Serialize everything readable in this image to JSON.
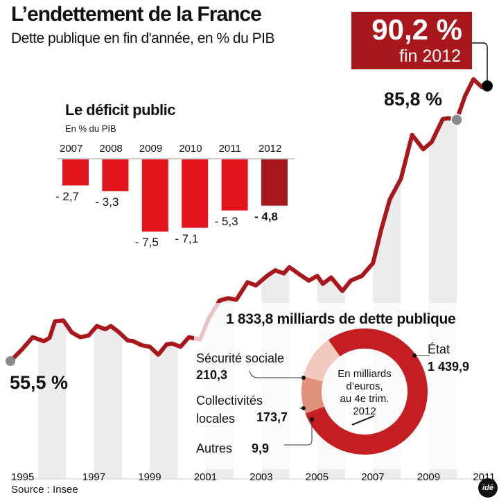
{
  "header": {
    "title": "L’endettement de la France",
    "subtitle": "Dette publique en fin d'année, en % du PIB"
  },
  "highlight": {
    "value": "90,2 %",
    "label": "fin 2012"
  },
  "annotations": {
    "start": "55,5 %",
    "mid": "85,8 %"
  },
  "source": "Source : Insee",
  "logo": "idé",
  "colors": {
    "line": "#a8171c",
    "bar": "#e3141b",
    "bar_highlight": "#a8171c",
    "stripe": "#ececec",
    "secu": "#f2c9bd",
    "collectivites": "#e0917c",
    "etat": "#c41e22"
  },
  "chart_data": [
    {
      "type": "line",
      "ylabel": "% du PIB",
      "x_ticks": [
        "1995",
        "1997",
        "1999",
        "2001",
        "2003",
        "2005",
        "2007",
        "2009",
        "2011"
      ],
      "grid": false,
      "background": "alternating year stripes",
      "x": [
        1995.0,
        1995.4,
        1995.8,
        1996.2,
        1996.4,
        1996.6,
        1996.9,
        1997.2,
        1997.5,
        1997.8,
        1998.1,
        1998.4,
        1998.6,
        1998.9,
        1999.2,
        1999.4,
        1999.7,
        2000.0,
        2000.3,
        2000.6,
        2000.8,
        2001.1,
        2001.4,
        2001.8,
        2002.1,
        2002.5,
        2002.8,
        2003.1,
        2003.5,
        2003.8,
        2004.2,
        2004.5,
        2004.8,
        2005.0,
        2005.4,
        2005.7,
        2006.0,
        2006.2,
        2006.5,
        2006.9,
        2007.2,
        2007.6,
        2008.0,
        2008.3,
        2008.6,
        2009.0,
        2009.4,
        2009.8,
        2010.1,
        2010.5,
        2010.7,
        2011.0,
        2011.3,
        2011.6,
        2011.9,
        2012.0
      ],
      "values": [
        55.5,
        56.9,
        58.5,
        58.0,
        58.4,
        60.5,
        60.6,
        59.1,
        58.5,
        58.7,
        59.9,
        59.5,
        59.9,
        59.1,
        58.1,
        58.0,
        57.5,
        57.3,
        56.3,
        57.6,
        57.7,
        57.3,
        58.5,
        58.2,
        60.8,
        63.1,
        63.4,
        63.2,
        65.4,
        65.0,
        66.2,
        66.9,
        66.5,
        67.3,
        66.3,
        65.6,
        66.2,
        65.2,
        66.0,
        64.3,
        65.6,
        66.2,
        67.8,
        72.1,
        75.8,
        78.4,
        83.9,
        82.1,
        83.0,
        85.9,
        86.0,
        85.8,
        88.8,
        90.9,
        89.9,
        90.2
      ],
      "ylim": [
        55.5,
        90.2
      ]
    },
    {
      "type": "bar",
      "title": "Le déficit public",
      "subtitle": "En % du PIB",
      "categories": [
        "2007",
        "2008",
        "2009",
        "2010",
        "2011",
        "2012"
      ],
      "values": [
        -2.7,
        -3.3,
        -7.5,
        -7.1,
        -5.3,
        -4.8
      ],
      "labels": [
        "- 2,7",
        "- 3,3",
        "- 7,5",
        "- 7,1",
        "- 5,3",
        "- 4,8"
      ],
      "highlight": "2012"
    },
    {
      "type": "pie",
      "donut": true,
      "title": "1 833,8 milliards de dette publique",
      "center_text": [
        "En milliards",
        "d’euros,",
        "au 4e trim.",
        "2012"
      ],
      "slices": [
        {
          "name": "État",
          "value": 1439.9,
          "label": "1 439,9",
          "color": "#c41e22"
        },
        {
          "name": "Autres",
          "value": 9.9,
          "label": "9,9",
          "color": "#c41e22"
        },
        {
          "name": "Collectivités locales",
          "name_lines": [
            "Collectivités",
            "locales"
          ],
          "value": 173.7,
          "label": "173,7",
          "color": "#e0917c"
        },
        {
          "name": "Sécurité sociale",
          "value": 210.3,
          "label": "210,3",
          "color": "#f2c9bd"
        }
      ]
    }
  ]
}
